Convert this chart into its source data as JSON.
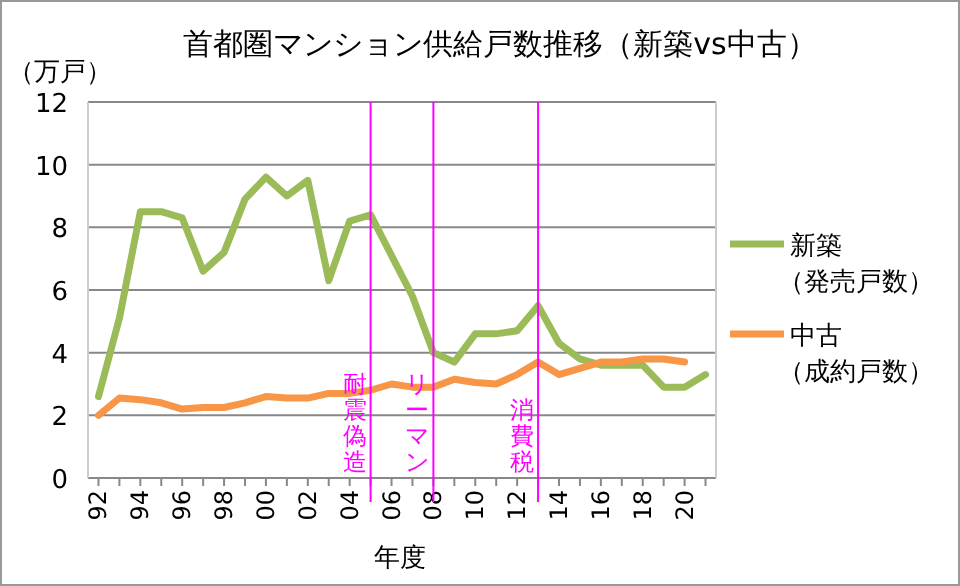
{
  "chart_data": {
    "type": "line",
    "title": "首都圏マンション供給戸数推移（新築vs中古）",
    "xlabel": "年度",
    "ylabel": "（万戸）",
    "x": [
      1992,
      1993,
      1994,
      1995,
      1996,
      1997,
      1998,
      1999,
      2000,
      2001,
      2002,
      2003,
      2004,
      2005,
      2006,
      2007,
      2008,
      2009,
      2010,
      2011,
      2012,
      2013,
      2014,
      2015,
      2016,
      2017,
      2018,
      2019,
      2020,
      2021
    ],
    "series": [
      {
        "name": "新築（発売戸数）",
        "color": "#9bbb59",
        "values": [
          2.6,
          5.1,
          8.5,
          8.5,
          8.3,
          6.6,
          7.2,
          8.9,
          9.6,
          9.0,
          9.5,
          6.3,
          8.2,
          8.4,
          7.1,
          5.8,
          4.0,
          3.7,
          4.6,
          4.6,
          4.7,
          5.5,
          4.3,
          3.8,
          3.6,
          3.6,
          3.6,
          2.9,
          2.9,
          3.3
        ]
      },
      {
        "name": "中古（成約戸数）",
        "color": "#f79646",
        "values": [
          2.0,
          2.55,
          2.5,
          2.4,
          2.2,
          2.25,
          2.25,
          2.4,
          2.6,
          2.55,
          2.55,
          2.7,
          2.7,
          2.8,
          3.0,
          2.9,
          2.9,
          3.15,
          3.05,
          3.0,
          3.3,
          3.7,
          3.3,
          3.5,
          3.7,
          3.7,
          3.8,
          3.8,
          3.7,
          null
        ]
      }
    ],
    "xlim": [
      1991.5,
      2021.5
    ],
    "xticks": [
      {
        "value": 1992,
        "label": "92"
      },
      {
        "value": 1993,
        "label": null
      },
      {
        "value": 1994,
        "label": "94"
      },
      {
        "value": 1995,
        "label": null
      },
      {
        "value": 1996,
        "label": "96"
      },
      {
        "value": 1997,
        "label": null
      },
      {
        "value": 1998,
        "label": "98"
      },
      {
        "value": 1999,
        "label": null
      },
      {
        "value": 2000,
        "label": "00"
      },
      {
        "value": 2001,
        "label": null
      },
      {
        "value": 2002,
        "label": "02"
      },
      {
        "value": 2003,
        "label": null
      },
      {
        "value": 2004,
        "label": "04"
      },
      {
        "value": 2005,
        "label": null
      },
      {
        "value": 2006,
        "label": "06"
      },
      {
        "value": 2007,
        "label": null
      },
      {
        "value": 2008,
        "label": "08"
      },
      {
        "value": 2009,
        "label": null
      },
      {
        "value": 2010,
        "label": "10"
      },
      {
        "value": 2011,
        "label": null
      },
      {
        "value": 2012,
        "label": "12"
      },
      {
        "value": 2013,
        "label": null
      },
      {
        "value": 2014,
        "label": "14"
      },
      {
        "value": 2015,
        "label": null
      },
      {
        "value": 2016,
        "label": "16"
      },
      {
        "value": 2017,
        "label": null
      },
      {
        "value": 2018,
        "label": "18"
      },
      {
        "value": 2019,
        "label": null
      },
      {
        "value": 2020,
        "label": "20"
      },
      {
        "value": 2021,
        "label": null
      }
    ],
    "ylim": [
      0,
      12
    ],
    "yticks": [
      0,
      2,
      4,
      6,
      8,
      10,
      12
    ],
    "ref_lines": [
      {
        "axis": "x",
        "value": 2005,
        "label": "耐震偽造",
        "color": "#ff00ff"
      },
      {
        "axis": "x",
        "value": 2008,
        "label": "リーマン",
        "color": "#ff00ff"
      },
      {
        "axis": "x",
        "value": 2013,
        "label": "消費税",
        "color": "#ff00ff"
      }
    ],
    "grid": "y",
    "legend": "right",
    "marker": "none",
    "line_style": "solid"
  }
}
